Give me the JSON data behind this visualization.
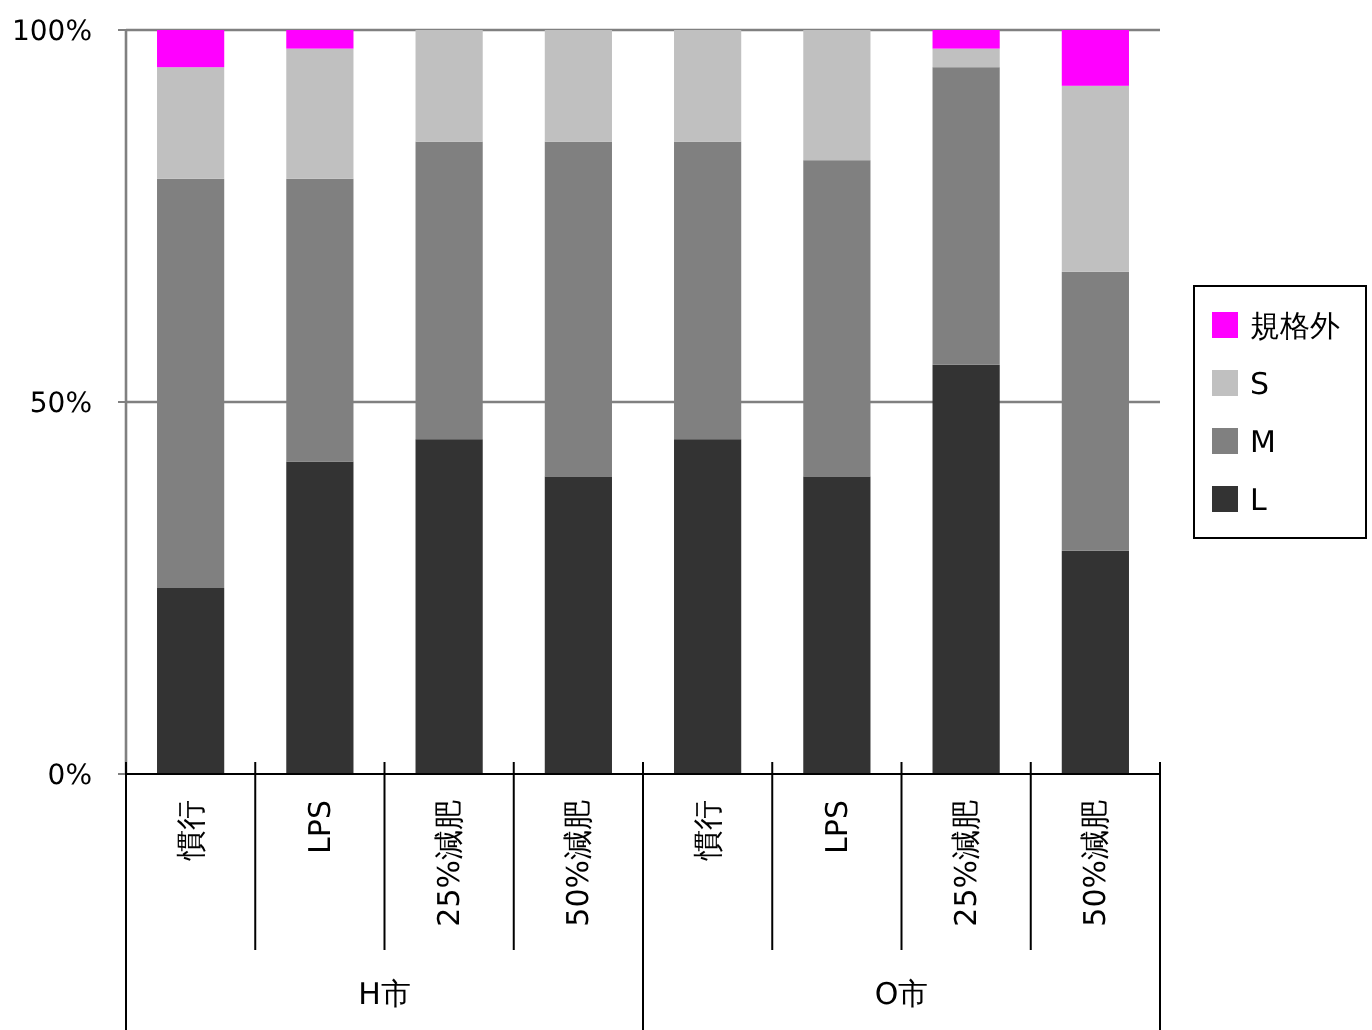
{
  "chart_data": {
    "type": "bar",
    "stacked": true,
    "categories": [
      "慣行",
      "LPS",
      "25%減肥",
      "50%減肥",
      "慣行",
      "LPS",
      "25%減肥",
      "50%減肥"
    ],
    "series": [
      {
        "name": "L",
        "color": "#333333",
        "values": [
          25,
          42,
          45,
          40,
          45,
          40,
          55,
          30
        ]
      },
      {
        "name": "M",
        "color": "#808080",
        "values": [
          55,
          38,
          40,
          45,
          40,
          42.5,
          40,
          37.5
        ]
      },
      {
        "name": "S",
        "color": "#c0c0c0",
        "values": [
          15,
          17.5,
          15,
          15,
          15,
          17.5,
          2.5,
          25
        ]
      },
      {
        "name": "規格外",
        "color": "#ff00ff",
        "values": [
          5,
          2.5,
          0,
          0,
          0,
          0,
          2.5,
          7.5
        ]
      }
    ],
    "ylim": [
      0,
      100
    ],
    "yticks": [
      {
        "value": 0,
        "label": "0%"
      },
      {
        "value": 50,
        "label": "50%"
      },
      {
        "value": 100,
        "label": "100%"
      }
    ],
    "grid": "y",
    "legend": "right",
    "annotations": [
      "H市",
      "O市"
    ]
  }
}
